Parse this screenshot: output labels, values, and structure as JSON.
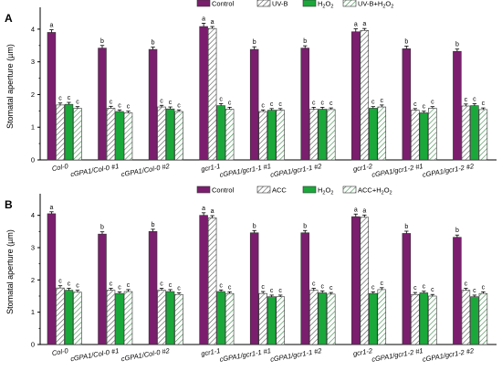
{
  "colors": {
    "control": "#7b1e6e",
    "green": "#1aa83a",
    "hatch_fill": "#ffffff",
    "hatch_line": "#444444",
    "axis": "#000000"
  },
  "chart_data": [
    {
      "type": "bar",
      "panel": "A",
      "ylabel": "Stomatal aperture (µm)",
      "ylim": [
        0,
        4.5
      ],
      "yticks": [
        "0",
        "1",
        "2",
        "3",
        "4"
      ],
      "categories": [
        "Col-0",
        "cGPA1/Col-0 #1",
        "cGPA1/Col-0 #2",
        "gcr1-1",
        "cGPA1/gcr1-1 #1",
        "cGPA1/gcr1-1 #2",
        "gcr1-2",
        "cGPA1/gcr1-2 #1",
        "cGPA1/gcr1-2 #2"
      ],
      "legend_labels": [
        "Control",
        "UV-B",
        "H2O2",
        "UV-B+H2O2"
      ],
      "series": [
        {
          "name": "Control",
          "style": "purple",
          "values": [
            3.9,
            3.42,
            3.38,
            4.08,
            3.38,
            3.42,
            3.92,
            3.4,
            3.32
          ],
          "errors": [
            0.08,
            0.08,
            0.07,
            0.1,
            0.08,
            0.07,
            0.09,
            0.08,
            0.07
          ],
          "letters": [
            "a",
            "b",
            "b",
            "a",
            "b",
            "b",
            "a",
            "b",
            "b"
          ]
        },
        {
          "name": "UV-B",
          "style": "hatch",
          "values": [
            1.68,
            1.58,
            1.62,
            4.02,
            1.48,
            1.55,
            3.96,
            1.52,
            1.65
          ],
          "errors": [
            0.06,
            0.06,
            0.05,
            0.06,
            0.05,
            0.06,
            0.06,
            0.05,
            0.06
          ],
          "letters": [
            "c",
            "c",
            "c",
            "a",
            "c",
            "c",
            "a",
            "c",
            "c"
          ]
        },
        {
          "name": "H2O2",
          "style": "green",
          "values": [
            1.7,
            1.48,
            1.56,
            1.66,
            1.52,
            1.55,
            1.58,
            1.44,
            1.66
          ],
          "errors": [
            0.06,
            0.05,
            0.06,
            0.06,
            0.05,
            0.06,
            0.05,
            0.05,
            0.06
          ],
          "letters": [
            "c",
            "c",
            "c",
            "c",
            "c",
            "c",
            "c",
            "c",
            "c"
          ]
        },
        {
          "name": "UV-B+H2O2",
          "style": "hatch-green",
          "values": [
            1.58,
            1.44,
            1.48,
            1.55,
            1.52,
            1.54,
            1.62,
            1.58,
            1.54
          ],
          "errors": [
            0.05,
            0.05,
            0.05,
            0.06,
            0.05,
            0.05,
            0.06,
            0.05,
            0.05
          ],
          "letters": [
            "c",
            "c",
            "c",
            "c",
            "c",
            "c",
            "c",
            "c",
            "c"
          ]
        }
      ]
    },
    {
      "type": "bar",
      "panel": "B",
      "ylabel": "Stomatal aperture (µm)",
      "ylim": [
        0,
        4.5
      ],
      "yticks": [
        "0",
        "1",
        "2",
        "3",
        "4"
      ],
      "categories": [
        "Col-0",
        "cGPA1/Col-0 #1",
        "cGPA1/Col-0 #2",
        "gcr1-1",
        "cGPA1/gcr1-1 #1",
        "cGPA1/gcr1-1 #2",
        "gcr1-2",
        "cGPA1/gcr1-2 #1",
        "cGPA1/gcr1-2 #2"
      ],
      "legend_labels": [
        "Control",
        "ACC",
        "H2O2",
        "ACC+H2O2"
      ],
      "series": [
        {
          "name": "Control",
          "style": "purple",
          "values": [
            4.05,
            3.42,
            3.5,
            4.0,
            3.46,
            3.46,
            3.96,
            3.44,
            3.32
          ],
          "errors": [
            0.06,
            0.07,
            0.07,
            0.08,
            0.07,
            0.07,
            0.08,
            0.07,
            0.07
          ],
          "letters": [
            "a",
            "b",
            "b",
            "a",
            "b",
            "b",
            "a",
            "b",
            "b"
          ]
        },
        {
          "name": "ACC",
          "style": "hatch",
          "values": [
            1.75,
            1.68,
            1.68,
            3.92,
            1.58,
            1.68,
            3.94,
            1.55,
            1.68
          ],
          "errors": [
            0.07,
            0.06,
            0.06,
            0.07,
            0.06,
            0.06,
            0.07,
            0.06,
            0.06
          ],
          "letters": [
            "c",
            "c",
            "c",
            "a",
            "c",
            "c",
            "a",
            "c",
            "c"
          ]
        },
        {
          "name": "H2O2",
          "style": "green",
          "values": [
            1.68,
            1.58,
            1.64,
            1.64,
            1.48,
            1.6,
            1.58,
            1.6,
            1.48
          ],
          "errors": [
            0.06,
            0.05,
            0.06,
            0.05,
            0.05,
            0.06,
            0.05,
            0.05,
            0.05
          ],
          "letters": [
            "c",
            "c",
            "c",
            "c",
            "c",
            "c",
            "c",
            "c",
            "c"
          ]
        },
        {
          "name": "ACC+H2O2",
          "style": "hatch-green",
          "values": [
            1.62,
            1.64,
            1.55,
            1.58,
            1.48,
            1.56,
            1.7,
            1.5,
            1.58
          ],
          "errors": [
            0.06,
            0.06,
            0.05,
            0.05,
            0.05,
            0.05,
            0.06,
            0.05,
            0.05
          ],
          "letters": [
            "c",
            "c",
            "c",
            "c",
            "c",
            "c",
            "c",
            "c",
            "c"
          ]
        }
      ]
    }
  ]
}
